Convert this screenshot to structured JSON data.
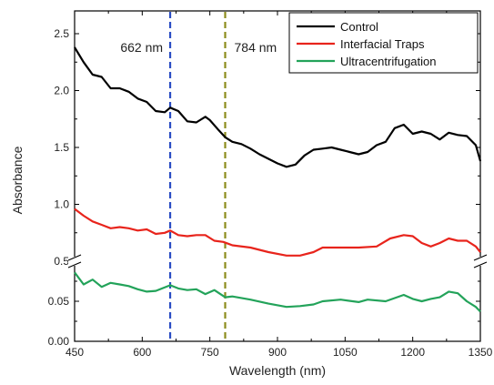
{
  "chart_data": {
    "type": "line",
    "title": "",
    "xlabel": "Wavelength (nm)",
    "ylabel": "Absorbance",
    "xlim": [
      450,
      1350
    ],
    "x_ticks": [
      450,
      600,
      750,
      900,
      1050,
      1200,
      1350
    ],
    "x_tick_labels": [
      "450",
      "600",
      "750",
      "900",
      "1050",
      "1200",
      "1350"
    ],
    "broken_y_axis": true,
    "upper_panel": {
      "ylim": [
        0.5,
        2.7
      ],
      "ticks": [
        0.5,
        1.0,
        1.5,
        2.0,
        2.5
      ],
      "tick_labels": [
        "0.5",
        "1.0",
        "1.5",
        "2.0",
        "2.5"
      ]
    },
    "lower_panel": {
      "ylim": [
        0.0,
        0.1
      ],
      "ticks": [
        0.0,
        0.05
      ],
      "tick_labels": [
        "0.00",
        "0.05"
      ]
    },
    "legend_position": "top-right",
    "series": [
      {
        "name": "Control",
        "panel": "upper",
        "color": "#000000",
        "x": [
          450,
          470,
          490,
          510,
          530,
          550,
          570,
          590,
          610,
          630,
          650,
          662,
          680,
          700,
          720,
          740,
          750,
          770,
          784,
          800,
          820,
          840,
          860,
          880,
          900,
          920,
          940,
          960,
          980,
          1000,
          1020,
          1040,
          1060,
          1080,
          1100,
          1120,
          1140,
          1160,
          1180,
          1200,
          1220,
          1240,
          1260,
          1280,
          1300,
          1320,
          1340,
          1350
        ],
        "values": [
          2.38,
          2.25,
          2.14,
          2.12,
          2.02,
          2.02,
          1.99,
          1.93,
          1.9,
          1.82,
          1.81,
          1.85,
          1.82,
          1.73,
          1.72,
          1.77,
          1.74,
          1.65,
          1.59,
          1.55,
          1.53,
          1.49,
          1.44,
          1.4,
          1.36,
          1.33,
          1.35,
          1.43,
          1.48,
          1.49,
          1.5,
          1.48,
          1.46,
          1.44,
          1.46,
          1.52,
          1.55,
          1.67,
          1.7,
          1.62,
          1.64,
          1.62,
          1.57,
          1.63,
          1.61,
          1.6,
          1.52,
          1.38
        ]
      },
      {
        "name": "Interfacial Traps",
        "panel": "upper",
        "color": "#e8241c",
        "x": [
          450,
          470,
          490,
          510,
          530,
          550,
          570,
          590,
          610,
          630,
          650,
          662,
          680,
          700,
          720,
          740,
          760,
          780,
          800,
          840,
          880,
          920,
          950,
          980,
          1000,
          1040,
          1080,
          1120,
          1150,
          1180,
          1200,
          1220,
          1240,
          1260,
          1280,
          1300,
          1320,
          1340,
          1350
        ],
        "values": [
          0.96,
          0.9,
          0.85,
          0.82,
          0.79,
          0.8,
          0.79,
          0.77,
          0.78,
          0.74,
          0.75,
          0.77,
          0.73,
          0.72,
          0.73,
          0.73,
          0.68,
          0.67,
          0.64,
          0.62,
          0.58,
          0.55,
          0.55,
          0.58,
          0.62,
          0.62,
          0.62,
          0.63,
          0.7,
          0.73,
          0.72,
          0.66,
          0.63,
          0.66,
          0.7,
          0.68,
          0.68,
          0.63,
          0.58
        ]
      },
      {
        "name": "Ultracentrifugation",
        "panel": "lower",
        "color": "#23a35a",
        "x": [
          450,
          470,
          490,
          510,
          530,
          550,
          570,
          590,
          610,
          630,
          662,
          680,
          700,
          720,
          740,
          760,
          784,
          800,
          840,
          880,
          920,
          950,
          980,
          1000,
          1040,
          1080,
          1100,
          1140,
          1180,
          1200,
          1220,
          1240,
          1260,
          1280,
          1300,
          1320,
          1340,
          1350
        ],
        "values": [
          0.086,
          0.071,
          0.077,
          0.068,
          0.073,
          0.071,
          0.069,
          0.065,
          0.062,
          0.063,
          0.07,
          0.066,
          0.064,
          0.065,
          0.059,
          0.064,
          0.055,
          0.056,
          0.052,
          0.047,
          0.043,
          0.044,
          0.046,
          0.05,
          0.052,
          0.049,
          0.052,
          0.05,
          0.058,
          0.053,
          0.05,
          0.053,
          0.055,
          0.062,
          0.06,
          0.05,
          0.043,
          0.037
        ]
      }
    ],
    "vlines": [
      {
        "x": 662,
        "label": "662 nm",
        "color": "#2a4dc4"
      },
      {
        "x": 784,
        "label": "784 nm",
        "color": "#8c8c1c"
      }
    ]
  }
}
